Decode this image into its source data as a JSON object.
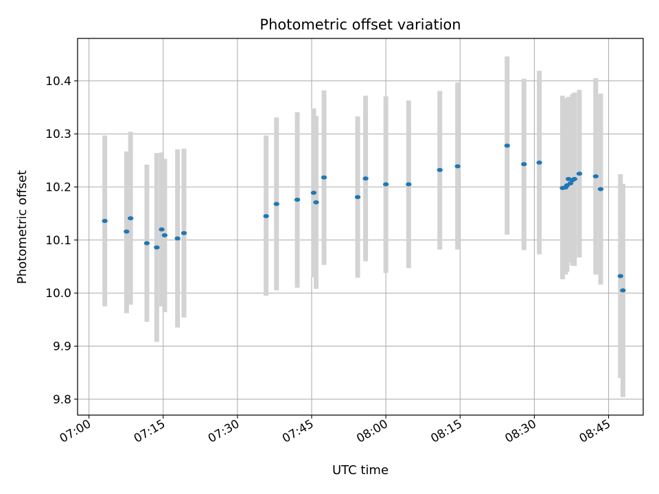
{
  "chart_data": {
    "type": "scatter",
    "title": "Photometric offset variation",
    "xlabel": "UTC time",
    "ylabel": "Photometric offset",
    "xlim": [
      "06:57:42",
      "08:52:00"
    ],
    "ylim": [
      9.77,
      10.48
    ],
    "grid": true,
    "x_ticks": [
      "07:00",
      "07:15",
      "07:30",
      "07:45",
      "08:00",
      "08:15",
      "08:30",
      "08:45"
    ],
    "y_ticks": [
      "9.8",
      "9.9",
      "10.0",
      "10.1",
      "10.2",
      "10.3",
      "10.4"
    ],
    "colors": {
      "marker": "#1f77b4",
      "errorbar": "#d3d3d3",
      "grid": "#b0b0b0"
    },
    "points": [
      {
        "t": "07:03:12",
        "y": 10.136,
        "lo": 9.975,
        "hi": 10.297
      },
      {
        "t": "07:07:36",
        "y": 10.116,
        "lo": 9.962,
        "hi": 10.267
      },
      {
        "t": "07:08:24",
        "y": 10.141,
        "lo": 9.978,
        "hi": 10.304
      },
      {
        "t": "07:11:42",
        "y": 10.094,
        "lo": 9.946,
        "hi": 10.242
      },
      {
        "t": "07:13:42",
        "y": 10.086,
        "lo": 9.908,
        "hi": 10.264
      },
      {
        "t": "07:14:42",
        "y": 10.12,
        "lo": 9.975,
        "hi": 10.265
      },
      {
        "t": "07:15:18",
        "y": 10.109,
        "lo": 9.964,
        "hi": 10.253
      },
      {
        "t": "07:17:54",
        "y": 10.103,
        "lo": 9.935,
        "hi": 10.271
      },
      {
        "t": "07:19:12",
        "y": 10.113,
        "lo": 9.954,
        "hi": 10.272
      },
      {
        "t": "07:35:48",
        "y": 10.145,
        "lo": 9.995,
        "hi": 10.297
      },
      {
        "t": "07:37:54",
        "y": 10.168,
        "lo": 10.005,
        "hi": 10.331
      },
      {
        "t": "07:42:06",
        "y": 10.176,
        "lo": 10.01,
        "hi": 10.341
      },
      {
        "t": "07:45:24",
        "y": 10.189,
        "lo": 10.03,
        "hi": 10.348
      },
      {
        "t": "07:45:54",
        "y": 10.171,
        "lo": 10.008,
        "hi": 10.334
      },
      {
        "t": "07:47:30",
        "y": 10.218,
        "lo": 10.053,
        "hi": 10.382
      },
      {
        "t": "07:54:18",
        "y": 10.181,
        "lo": 10.029,
        "hi": 10.333
      },
      {
        "t": "07:55:54",
        "y": 10.216,
        "lo": 10.06,
        "hi": 10.372
      },
      {
        "t": "08:00:00",
        "y": 10.205,
        "lo": 10.038,
        "hi": 10.371
      },
      {
        "t": "08:04:36",
        "y": 10.205,
        "lo": 10.047,
        "hi": 10.363
      },
      {
        "t": "08:10:54",
        "y": 10.232,
        "lo": 10.082,
        "hi": 10.381
      },
      {
        "t": "08:14:30",
        "y": 10.239,
        "lo": 10.082,
        "hi": 10.397
      },
      {
        "t": "08:24:30",
        "y": 10.278,
        "lo": 10.11,
        "hi": 10.446
      },
      {
        "t": "08:27:54",
        "y": 10.243,
        "lo": 10.081,
        "hi": 10.404
      },
      {
        "t": "08:31:00",
        "y": 10.246,
        "lo": 10.073,
        "hi": 10.419
      },
      {
        "t": "08:35:42",
        "y": 10.198,
        "lo": 10.026,
        "hi": 10.372
      },
      {
        "t": "08:36:18",
        "y": 10.199,
        "lo": 10.035,
        "hi": 10.363
      },
      {
        "t": "08:36:36",
        "y": 10.203,
        "lo": 10.04,
        "hi": 10.367
      },
      {
        "t": "08:36:54",
        "y": 10.215,
        "lo": 10.06,
        "hi": 10.37
      },
      {
        "t": "08:37:18",
        "y": 10.207,
        "lo": 10.058,
        "hi": 10.357
      },
      {
        "t": "08:37:42",
        "y": 10.213,
        "lo": 10.052,
        "hi": 10.375
      },
      {
        "t": "08:38:06",
        "y": 10.215,
        "lo": 10.051,
        "hi": 10.378
      },
      {
        "t": "08:39:06",
        "y": 10.225,
        "lo": 10.067,
        "hi": 10.383
      },
      {
        "t": "08:42:24",
        "y": 10.22,
        "lo": 10.035,
        "hi": 10.405
      },
      {
        "t": "08:43:24",
        "y": 10.196,
        "lo": 10.016,
        "hi": 10.376
      },
      {
        "t": "08:47:24",
        "y": 10.032,
        "lo": 9.84,
        "hi": 10.224
      },
      {
        "t": "08:47:54",
        "y": 10.005,
        "lo": 9.804,
        "hi": 10.206
      }
    ]
  }
}
